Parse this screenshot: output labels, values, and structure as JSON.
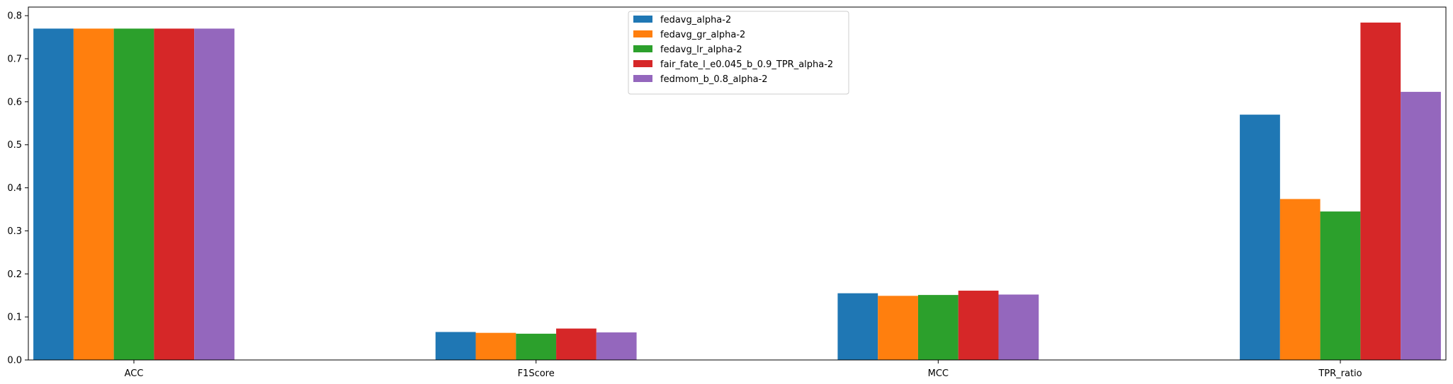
{
  "chart_data": {
    "type": "bar",
    "categories": [
      "ACC",
      "F1Score",
      "MCC",
      "TPR_ratio"
    ],
    "series": [
      {
        "name": "fedavg_alpha-2",
        "color": "#1f77b4",
        "values": [
          0.77,
          0.065,
          0.155,
          0.57
        ]
      },
      {
        "name": "fedavg_gr_alpha-2",
        "color": "#ff7f0e",
        "values": [
          0.77,
          0.063,
          0.149,
          0.374
        ]
      },
      {
        "name": "fedavg_lr_alpha-2",
        "color": "#2ca02c",
        "values": [
          0.77,
          0.061,
          0.151,
          0.345
        ]
      },
      {
        "name": "fair_fate_l_e0.045_b_0.9_TPR_alpha-2",
        "color": "#d62728",
        "values": [
          0.77,
          0.073,
          0.161,
          0.784
        ]
      },
      {
        "name": "fedmom_b_0.8_alpha-2",
        "color": "#9467bd",
        "values": [
          0.77,
          0.064,
          0.152,
          0.623
        ]
      }
    ],
    "yticks": [
      "0.0",
      "0.1",
      "0.2",
      "0.3",
      "0.4",
      "0.5",
      "0.6",
      "0.7",
      "0.8"
    ],
    "ylim": [
      0,
      0.82
    ],
    "legend_position": "top-center",
    "grid": false
  }
}
